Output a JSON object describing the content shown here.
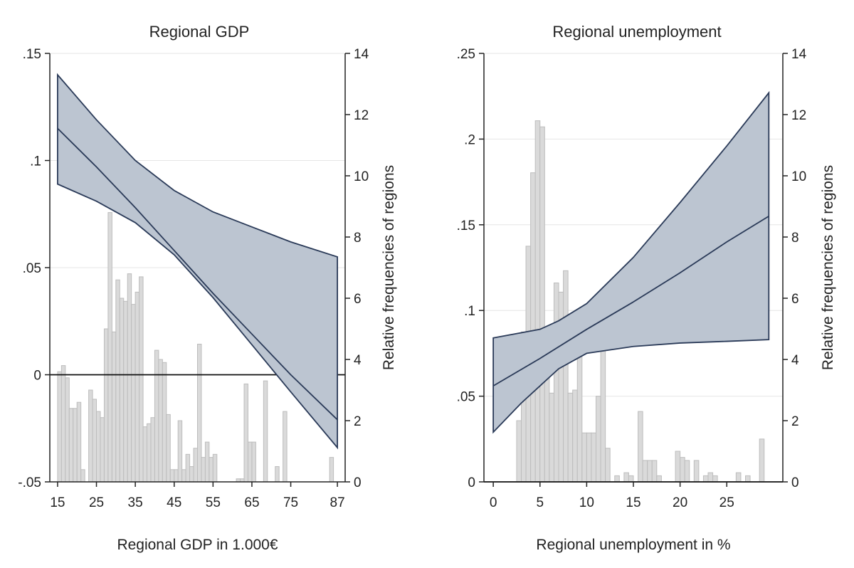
{
  "chart_data": [
    {
      "type": "line",
      "title": "Regional GDP",
      "xlabel": "Regional GDP in 1.000€",
      "ylabel": "",
      "y2label": "Relative frequencies of regions",
      "xlim": [
        13,
        89
      ],
      "ylim": [
        -0.05,
        0.15
      ],
      "y2lim": [
        0,
        14
      ],
      "xticks": [
        15,
        25,
        35,
        45,
        55,
        65,
        75,
        87
      ],
      "xtick_labels": [
        "15",
        "25",
        "35",
        "45",
        "55",
        "65",
        "75",
        "87"
      ],
      "yticks": [
        -0.05,
        0,
        0.05,
        0.1,
        0.15
      ],
      "ytick_labels": [
        "-.05",
        "0",
        ".05",
        ".1",
        ".15"
      ],
      "y2ticks": [
        0,
        2,
        4,
        6,
        8,
        10,
        12,
        14
      ],
      "y2tick_labels": [
        "0",
        "2",
        "4",
        "6",
        "8",
        "10",
        "12",
        "14"
      ],
      "grid": true,
      "estimate": {
        "x": [
          15,
          25,
          35,
          45,
          55,
          65,
          75,
          87
        ],
        "y": [
          0.115,
          0.097,
          0.078,
          0.058,
          0.038,
          0.019,
          0.0,
          -0.021
        ]
      },
      "ci_upper": {
        "x": [
          15,
          25,
          35,
          45,
          55,
          65,
          75,
          87
        ],
        "y": [
          0.14,
          0.119,
          0.1,
          0.086,
          0.076,
          0.069,
          0.062,
          0.055
        ]
      },
      "ci_lower": {
        "x": [
          15,
          25,
          35,
          45,
          55,
          65,
          75,
          87
        ],
        "y": [
          0.089,
          0.081,
          0.071,
          0.056,
          0.036,
          0.014,
          -0.008,
          -0.034
        ]
      },
      "histogram": {
        "bin_width": 1,
        "bins": [
          {
            "x": 15.5,
            "v": 3.6
          },
          {
            "x": 16.5,
            "v": 3.8
          },
          {
            "x": 17.5,
            "v": 3.4
          },
          {
            "x": 18.5,
            "v": 2.4
          },
          {
            "x": 19.5,
            "v": 2.4
          },
          {
            "x": 20.5,
            "v": 2.6
          },
          {
            "x": 21.5,
            "v": 0.4
          },
          {
            "x": 23.5,
            "v": 3.0
          },
          {
            "x": 24.5,
            "v": 2.7
          },
          {
            "x": 25.5,
            "v": 2.3
          },
          {
            "x": 26.5,
            "v": 2.1
          },
          {
            "x": 27.5,
            "v": 5.0
          },
          {
            "x": 28.5,
            "v": 8.8
          },
          {
            "x": 29.5,
            "v": 4.9
          },
          {
            "x": 30.5,
            "v": 6.6
          },
          {
            "x": 31.5,
            "v": 6.0
          },
          {
            "x": 32.5,
            "v": 5.9
          },
          {
            "x": 33.5,
            "v": 6.8
          },
          {
            "x": 34.5,
            "v": 5.8
          },
          {
            "x": 35.5,
            "v": 6.2
          },
          {
            "x": 36.5,
            "v": 6.7
          },
          {
            "x": 37.5,
            "v": 1.8
          },
          {
            "x": 38.5,
            "v": 1.9
          },
          {
            "x": 39.5,
            "v": 2.1
          },
          {
            "x": 40.5,
            "v": 4.3
          },
          {
            "x": 41.5,
            "v": 4.0
          },
          {
            "x": 42.5,
            "v": 3.9
          },
          {
            "x": 43.5,
            "v": 2.2
          },
          {
            "x": 44.5,
            "v": 0.4
          },
          {
            "x": 45.5,
            "v": 0.4
          },
          {
            "x": 46.5,
            "v": 2.0
          },
          {
            "x": 47.5,
            "v": 0.4
          },
          {
            "x": 48.5,
            "v": 0.9
          },
          {
            "x": 49.5,
            "v": 0.5
          },
          {
            "x": 50.5,
            "v": 1.1
          },
          {
            "x": 51.5,
            "v": 4.5
          },
          {
            "x": 52.5,
            "v": 0.8
          },
          {
            "x": 53.5,
            "v": 1.3
          },
          {
            "x": 54.5,
            "v": 0.8
          },
          {
            "x": 55.5,
            "v": 0.9
          },
          {
            "x": 61.5,
            "v": 0.1
          },
          {
            "x": 62.5,
            "v": 0.1
          },
          {
            "x": 63.5,
            "v": 3.2
          },
          {
            "x": 64.5,
            "v": 1.3
          },
          {
            "x": 65.5,
            "v": 1.3
          },
          {
            "x": 68.5,
            "v": 3.3
          },
          {
            "x": 71.5,
            "v": 0.5
          },
          {
            "x": 73.5,
            "v": 2.3
          },
          {
            "x": 85.5,
            "v": 0.8
          }
        ]
      }
    },
    {
      "type": "line",
      "title": "Regional unemployment",
      "xlabel": "Regional unemployment in %",
      "ylabel": "",
      "y2label": "Relative frequencies of regions",
      "xlim": [
        -1,
        31
      ],
      "ylim": [
        0,
        0.25
      ],
      "y2lim": [
        0,
        14
      ],
      "xticks": [
        0,
        5,
        10,
        15,
        20,
        25
      ],
      "xtick_labels": [
        "0",
        "5",
        "10",
        "15",
        "20",
        "25"
      ],
      "yticks": [
        0,
        0.05,
        0.1,
        0.15,
        0.2,
        0.25
      ],
      "ytick_labels": [
        "0",
        ".05",
        ".1",
        ".15",
        ".2",
        ".25"
      ],
      "y2ticks": [
        0,
        2,
        4,
        6,
        8,
        10,
        12,
        14
      ],
      "y2tick_labels": [
        "0",
        "2",
        "4",
        "6",
        "8",
        "10",
        "12",
        "14"
      ],
      "grid": true,
      "estimate": {
        "x": [
          0,
          5,
          10,
          15,
          20,
          25,
          29.5
        ],
        "y": [
          0.056,
          0.072,
          0.089,
          0.105,
          0.122,
          0.14,
          0.155
        ]
      },
      "ci_upper": {
        "x": [
          0,
          5,
          7,
          10,
          15,
          20,
          25,
          29.5
        ],
        "y": [
          0.084,
          0.089,
          0.094,
          0.104,
          0.131,
          0.163,
          0.196,
          0.227
        ]
      },
      "ci_lower": {
        "x": [
          0,
          3,
          5,
          7,
          10,
          15,
          20,
          25,
          29.5
        ],
        "y": [
          0.029,
          0.046,
          0.056,
          0.066,
          0.075,
          0.079,
          0.081,
          0.082,
          0.083
        ]
      },
      "histogram": {
        "bin_width": 0.5,
        "bins": [
          {
            "x": 2.75,
            "v": 2.0
          },
          {
            "x": 3.25,
            "v": 4.9
          },
          {
            "x": 3.75,
            "v": 7.7
          },
          {
            "x": 4.25,
            "v": 10.1
          },
          {
            "x": 4.75,
            "v": 11.8
          },
          {
            "x": 5.25,
            "v": 11.6
          },
          {
            "x": 5.75,
            "v": 4.9
          },
          {
            "x": 6.25,
            "v": 2.9
          },
          {
            "x": 6.75,
            "v": 6.5
          },
          {
            "x": 7.25,
            "v": 6.2
          },
          {
            "x": 7.75,
            "v": 6.9
          },
          {
            "x": 8.25,
            "v": 2.9
          },
          {
            "x": 8.75,
            "v": 3.0
          },
          {
            "x": 9.25,
            "v": 4.6
          },
          {
            "x": 9.75,
            "v": 1.6
          },
          {
            "x": 10.25,
            "v": 1.6
          },
          {
            "x": 10.75,
            "v": 1.6
          },
          {
            "x": 11.25,
            "v": 2.8
          },
          {
            "x": 11.75,
            "v": 4.3
          },
          {
            "x": 12.25,
            "v": 1.1
          },
          {
            "x": 13.25,
            "v": 0.2
          },
          {
            "x": 14.25,
            "v": 0.3
          },
          {
            "x": 14.75,
            "v": 0.2
          },
          {
            "x": 15.75,
            "v": 2.3
          },
          {
            "x": 16.25,
            "v": 0.7
          },
          {
            "x": 16.75,
            "v": 0.7
          },
          {
            "x": 17.25,
            "v": 0.7
          },
          {
            "x": 17.75,
            "v": 0.2
          },
          {
            "x": 19.75,
            "v": 1.0
          },
          {
            "x": 20.25,
            "v": 0.8
          },
          {
            "x": 20.75,
            "v": 0.7
          },
          {
            "x": 21.75,
            "v": 0.7
          },
          {
            "x": 22.75,
            "v": 0.2
          },
          {
            "x": 23.25,
            "v": 0.3
          },
          {
            "x": 23.75,
            "v": 0.2
          },
          {
            "x": 26.25,
            "v": 0.3
          },
          {
            "x": 27.25,
            "v": 0.2
          },
          {
            "x": 28.75,
            "v": 1.4
          }
        ]
      }
    }
  ]
}
